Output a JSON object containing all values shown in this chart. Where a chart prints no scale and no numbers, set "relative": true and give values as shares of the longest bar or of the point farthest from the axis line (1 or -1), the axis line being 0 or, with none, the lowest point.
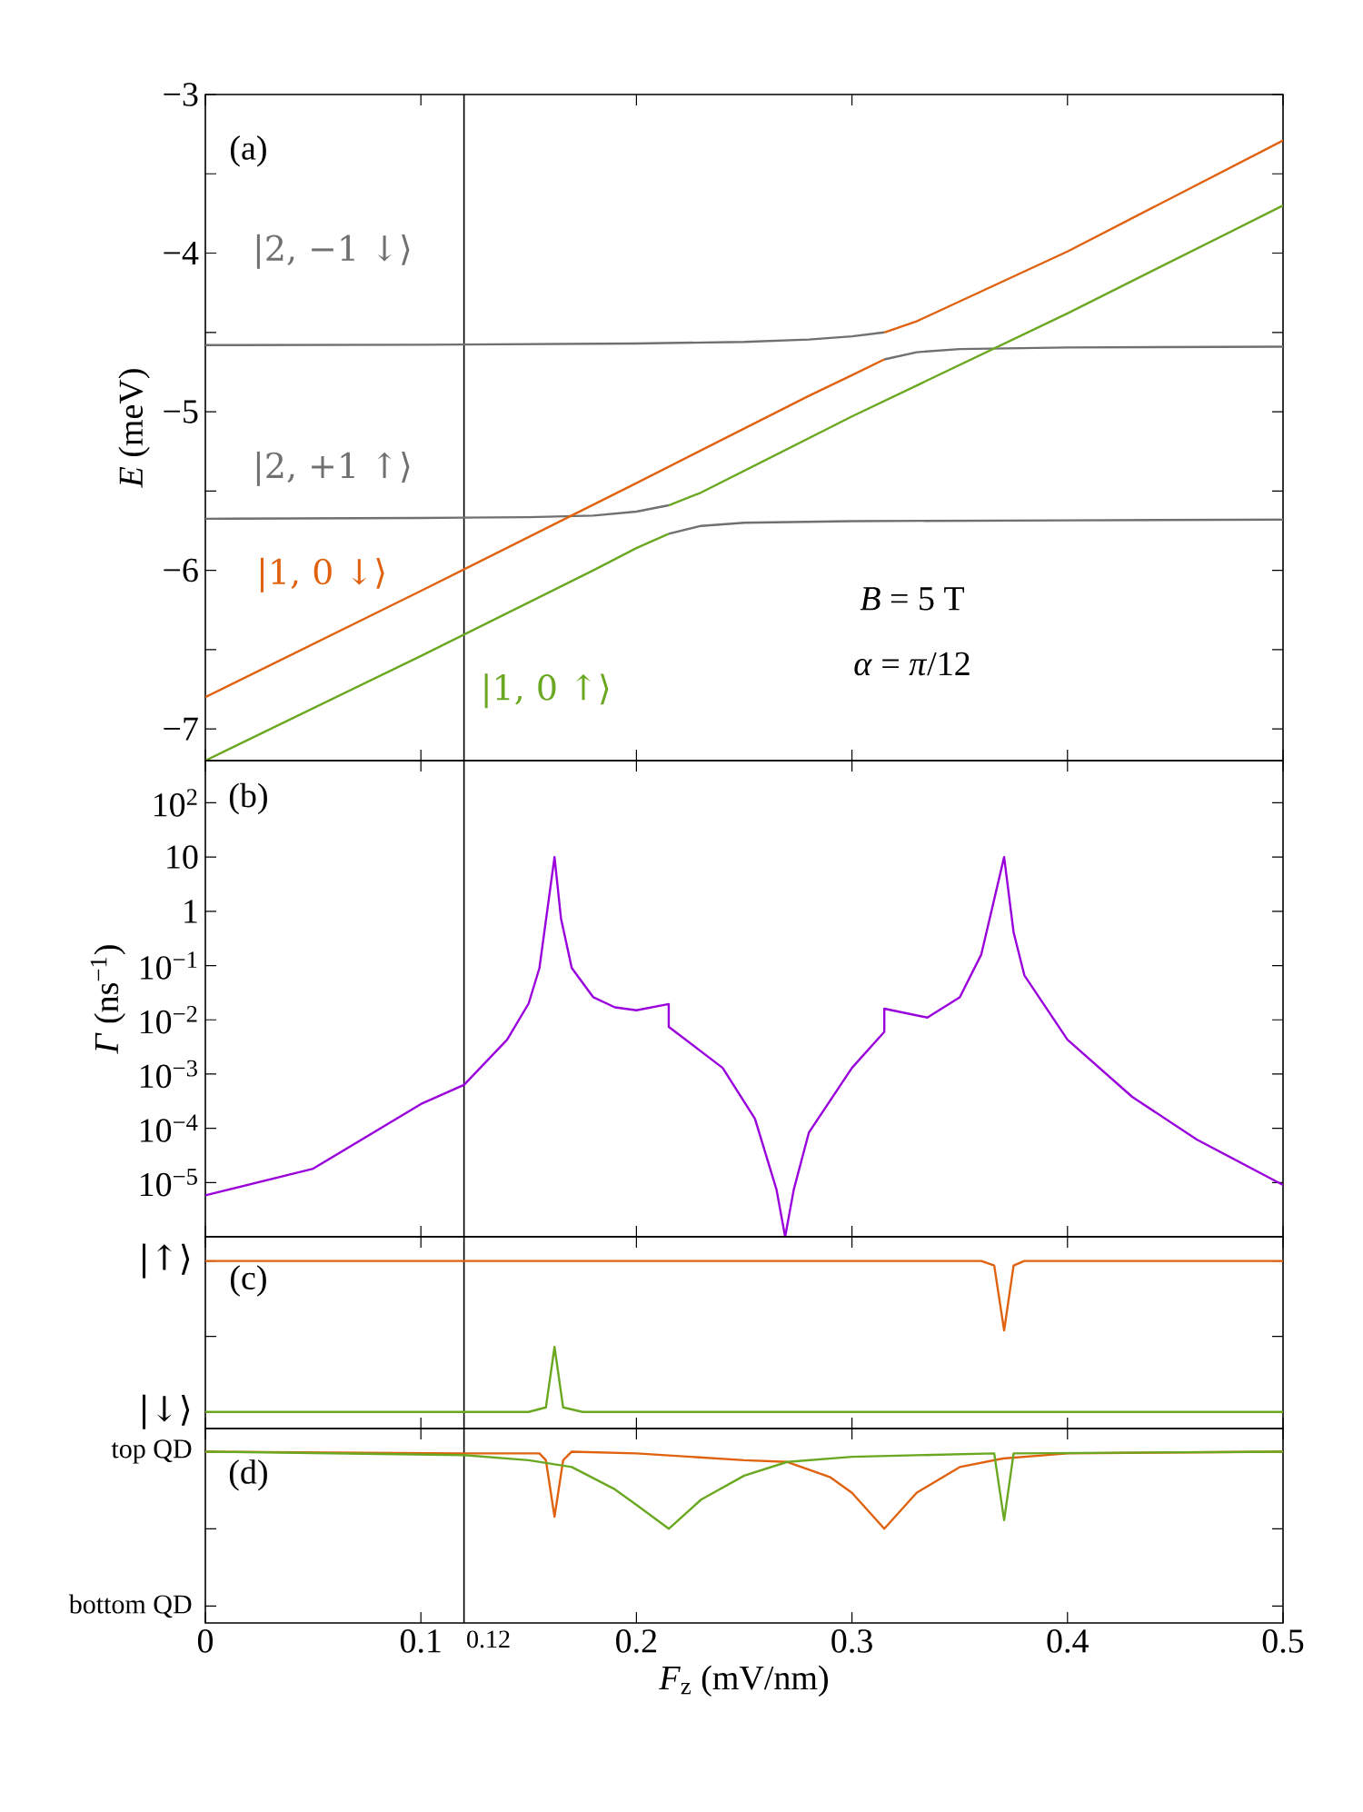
{
  "chart_data": [
    {
      "type": "line",
      "ylabel": "*E* (meV)",
      "xlim": [
        0,
        0.5
      ],
      "xticks": [
        0,
        0.1,
        0.2,
        0.3,
        0.4,
        0.5
      ],
      "ylim": [
        -7.2,
        -3
      ],
      "yticks": [
        {
          "value": -7,
          "label": "−7"
        },
        {
          "value": -6.5,
          "label": null
        },
        {
          "value": -6,
          "label": "−6"
        },
        {
          "value": -5.5,
          "label": null
        },
        {
          "value": -5,
          "label": "−5"
        },
        {
          "value": -4.5,
          "label": null
        },
        {
          "value": -4,
          "label": "−4"
        },
        {
          "value": -3.5,
          "label": null
        },
        {
          "value": -3,
          "label": "−3"
        }
      ],
      "tick_labels": "y",
      "annotations": [
        "(a)",
        "*B* = 5 T",
        "*α* = *π*/12"
      ],
      "ref_lines": [
        {
          "axis": "x",
          "value": 0.12
        }
      ],
      "series": [
        {
          "name": "|2, −1 ↓⟩",
          "color": "#707070",
          "x": [
            0,
            0.1,
            0.2,
            0.25,
            0.28,
            0.3,
            0.315
          ],
          "values": [
            -4.58,
            -4.578,
            -4.57,
            -4.56,
            -4.545,
            -4.525,
            -4.5
          ]
        },
        {
          "color": "#707070",
          "x": [
            0.315,
            0.33,
            0.35,
            0.4,
            0.5
          ],
          "values": [
            -4.67,
            -4.625,
            -4.605,
            -4.595,
            -4.59
          ]
        },
        {
          "name": "|2, +1 ↑⟩",
          "color": "#707070",
          "x": [
            0,
            0.1,
            0.15,
            0.18,
            0.2,
            0.215
          ],
          "values": [
            -5.675,
            -5.67,
            -5.665,
            -5.655,
            -5.63,
            -5.59
          ]
        },
        {
          "color": "#707070",
          "x": [
            0.215,
            0.23,
            0.25,
            0.3,
            0.4,
            0.5
          ],
          "values": [
            -5.77,
            -5.72,
            -5.7,
            -5.69,
            -5.685,
            -5.68
          ]
        },
        {
          "name": "|1, 0 ↓⟩",
          "color": "#e0620f",
          "x": [
            0,
            0.1,
            0.2,
            0.28,
            0.3,
            0.315
          ],
          "values": [
            -6.8,
            -6.13,
            -5.45,
            -4.9,
            -4.77,
            -4.67
          ]
        },
        {
          "color": "#e0620f",
          "x": [
            0.315,
            0.33,
            0.4,
            0.5
          ],
          "values": [
            -4.5,
            -4.43,
            -3.99,
            -3.29
          ]
        },
        {
          "name": "|1, 0 ↑⟩",
          "color": "#6aa821",
          "x": [
            0,
            0.1,
            0.18,
            0.2,
            0.215
          ],
          "values": [
            -7.2,
            -6.54,
            -6.0,
            -5.86,
            -5.77
          ]
        },
        {
          "color": "#6aa821",
          "x": [
            0.215,
            0.23,
            0.3,
            0.4,
            0.5
          ],
          "values": [
            -5.59,
            -5.51,
            -5.03,
            -4.38,
            -3.7
          ]
        }
      ]
    },
    {
      "type": "line",
      "ylabel": "*Γ* (ns$^{−1}$)",
      "log": "y",
      "xlim": [
        0,
        0.5
      ],
      "xticks": [
        0,
        0.1,
        0.2,
        0.3,
        0.4,
        0.5
      ],
      "ylim": [
        1e-06,
        600
      ],
      "yticks": [
        {
          "value": 1e-05,
          "label": "10$^{−5}$"
        },
        {
          "value": 0.0001,
          "label": "10$^{−4}$"
        },
        {
          "value": 0.001,
          "label": "10$^{−3}$"
        },
        {
          "value": 0.01,
          "label": "10$^{−2}$"
        },
        {
          "value": 0.1,
          "label": "10$^{−1}$"
        },
        1,
        10,
        {
          "value": 100,
          "label": "10$^{2}$"
        }
      ],
      "tick_labels": "y",
      "annotations": [
        "(b)"
      ],
      "ref_lines": [
        {
          "axis": "x",
          "value": 0.12
        }
      ],
      "series": [
        {
          "color": "#9a00dc",
          "x": [
            0,
            0.05,
            0.1,
            0.12,
            0.14,
            0.15,
            0.155,
            0.162,
            0.165,
            0.17,
            0.18,
            0.19,
            0.2,
            0.215,
            0.215,
            0.24,
            0.255,
            0.265,
            0.269,
            0.273,
            0.28,
            0.3,
            0.315,
            0.315,
            0.335,
            0.35,
            0.36,
            0.3706,
            0.375,
            0.38,
            0.4,
            0.43,
            0.46,
            0.5
          ],
          "values": [
            5.8e-06,
            1.8e-05,
            0.00028,
            0.00063,
            0.0043,
            0.02,
            0.09,
            10,
            0.74,
            0.09,
            0.026,
            0.017,
            0.015,
            0.0195,
            0.0074,
            0.0013,
            0.00015,
            7.4e-06,
            1e-06,
            7.4e-06,
            8.3e-05,
            0.0013,
            0.006,
            0.016,
            0.011,
            0.026,
            0.16,
            10,
            0.41,
            0.066,
            0.0043,
            0.00038,
            6.2e-05,
            9e-06
          ]
        }
      ]
    },
    {
      "type": "line",
      "relative": true,
      "xlim": [
        0,
        0.5
      ],
      "xticks": [
        0,
        0.1,
        0.2,
        0.3,
        0.4,
        0.5
      ],
      "tick_labels": false,
      "annotations": [
        "(c)",
        "|↑⟩",
        "|↓⟩"
      ],
      "ref_lines": [
        {
          "axis": "x",
          "value": 0.12
        }
      ],
      "series": [
        {
          "color": "#e0620f",
          "x": [
            0,
            0.36,
            0.366,
            0.3706,
            0.375,
            0.38,
            0.5
          ],
          "values": [
            1,
            1,
            0.97,
            0.54,
            0.97,
            1,
            1
          ]
        },
        {
          "color": "#6aa821",
          "x": [
            0,
            0.15,
            0.158,
            0.162,
            0.166,
            0.175,
            0.5
          ],
          "values": [
            0,
            0,
            0.03,
            0.43,
            0.03,
            0,
            0
          ]
        }
      ]
    },
    {
      "type": "line",
      "relative": true,
      "xlabel": "*F*$_{z}$ (mV/nm)",
      "xlim": [
        0,
        0.5
      ],
      "xticks": [
        0,
        0.1,
        0.2,
        0.3,
        0.4,
        0.5
      ],
      "tick_labels": "x",
      "annotations": [
        "(d)",
        "top QD",
        "bottom QD"
      ],
      "ref_lines": [
        {
          "axis": "x",
          "value": 0.12,
          "label": "0.12"
        }
      ],
      "series": [
        {
          "color": "#e0620f",
          "x": [
            0,
            0.12,
            0.155,
            0.158,
            0.162,
            0.166,
            0.17,
            0.2,
            0.25,
            0.27,
            0.29,
            0.3,
            0.315,
            0.33,
            0.35,
            0.37,
            0.4,
            0.5
          ],
          "values": [
            1,
            0.99,
            0.99,
            0.95,
            0.62,
            0.95,
            1,
            0.99,
            0.95,
            0.94,
            0.85,
            0.76,
            0.55,
            0.76,
            0.91,
            0.96,
            0.99,
            1
          ]
        },
        {
          "color": "#6aa821",
          "x": [
            0,
            0.12,
            0.15,
            0.17,
            0.19,
            0.2,
            0.215,
            0.23,
            0.25,
            0.27,
            0.3,
            0.366,
            0.3706,
            0.375,
            0.5
          ],
          "values": [
            1,
            0.98,
            0.95,
            0.91,
            0.78,
            0.69,
            0.55,
            0.72,
            0.86,
            0.94,
            0.97,
            0.99,
            0.6,
            0.99,
            1
          ]
        }
      ]
    }
  ]
}
